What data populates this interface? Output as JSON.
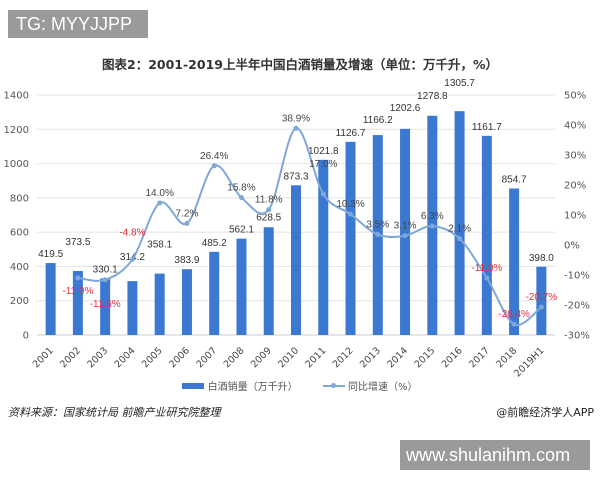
{
  "banner": "TG: MYYJJPP",
  "watermark": "www.shulanihm.com",
  "source": "资料来源：国家统计局 前瞻产业研究院整理",
  "credit": "@前瞻经济学人APP",
  "chart_data": {
    "type": "bar+line",
    "title": "图表2：2001-2019上半年中国白酒销量及增速（单位：万千升，%）",
    "categories": [
      "2001",
      "2002",
      "2003",
      "2004",
      "2005",
      "2006",
      "2007",
      "2008",
      "2009",
      "2010",
      "2011",
      "2012",
      "2013",
      "2014",
      "2015",
      "2016",
      "2017",
      "2018",
      "2019H1"
    ],
    "series": [
      {
        "name": "白酒销量（万千升）",
        "type": "bar",
        "axis": "left",
        "color": "#3a78d2",
        "values": [
          419.5,
          373.5,
          330.1,
          314.2,
          358.1,
          383.9,
          485.2,
          562.1,
          628.5,
          873.3,
          1021.8,
          1126.7,
          1166.2,
          1202.6,
          1278.8,
          1305.7,
          1161.7,
          854.7,
          398.0
        ]
      },
      {
        "name": "同比增速（%）",
        "type": "line",
        "axis": "right",
        "color": "#7fa7d8",
        "values": [
          null,
          -11.0,
          -11.6,
          -4.8,
          14.0,
          7.2,
          26.4,
          15.8,
          11.8,
          38.9,
          17.0,
          10.3,
          3.5,
          3.1,
          6.3,
          2.1,
          -11.0,
          -26.4,
          -20.7
        ],
        "labels": [
          "",
          "-11.0%",
          "-11.6%",
          "-4.8%",
          "14.0%",
          "7.2%",
          "26.4%",
          "15.8%",
          "11.8%",
          "38.9%",
          "17.0%",
          "10.3%",
          "3.5%",
          "3.1%",
          "6.3%",
          "2.1%",
          "-11.0%",
          "-26.4%",
          "-20.7%"
        ]
      }
    ],
    "bar_labels": [
      "419.5",
      "373.5",
      "330.1",
      "314.2",
      "358.1",
      "383.9",
      "485.2",
      "562.1",
      "628.5",
      "873.3",
      "1021.8",
      "1126.7",
      "1166.2",
      "1202.6",
      "1278.8",
      "1305.7",
      "1161.7",
      "854.7",
      "398.0"
    ],
    "left_axis": {
      "range": [
        0,
        1400
      ],
      "ticks": [
        "0",
        "200",
        "400",
        "600",
        "800",
        "1000",
        "1200",
        "1400"
      ]
    },
    "right_axis": {
      "range": [
        -30,
        50
      ],
      "ticks": [
        "-30%",
        "-20%",
        "-10%",
        "0%",
        "10%",
        "20%",
        "30%",
        "40%",
        "50%"
      ]
    },
    "negative_label_color": "#e0303a",
    "grid": true,
    "legend": "bottom"
  }
}
